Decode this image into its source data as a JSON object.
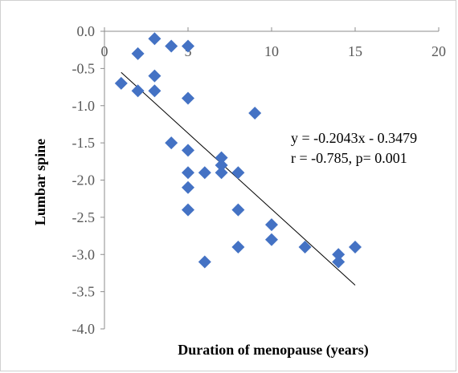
{
  "chart_data": {
    "type": "scatter",
    "title": "",
    "xlabel": "Duration of menopause (years)",
    "ylabel": "Lumbar spine",
    "xlim": [
      0,
      20
    ],
    "ylim": [
      -4.0,
      0.0
    ],
    "x_ticks": [
      "0",
      "5",
      "10",
      "15",
      "20"
    ],
    "y_ticks": [
      "0.0",
      "-0.5",
      "-1.0",
      "-1.5",
      "-2.0",
      "-2.5",
      "-3.0",
      "-3.5",
      "-4.0"
    ],
    "x_tick_values": [
      0,
      5,
      10,
      15,
      20
    ],
    "y_tick_values": [
      0.0,
      -0.5,
      -1.0,
      -1.5,
      -2.0,
      -2.5,
      -3.0,
      -3.5,
      -4.0
    ],
    "grid": false,
    "marker_color": "#4472C4",
    "points": [
      {
        "x": 1,
        "y": -0.7
      },
      {
        "x": 2,
        "y": -0.3
      },
      {
        "x": 2,
        "y": -0.8
      },
      {
        "x": 3,
        "y": -0.1
      },
      {
        "x": 3,
        "y": -0.6
      },
      {
        "x": 3,
        "y": -0.8
      },
      {
        "x": 4,
        "y": -0.2
      },
      {
        "x": 4,
        "y": -1.5
      },
      {
        "x": 5,
        "y": -0.2
      },
      {
        "x": 5,
        "y": -0.9
      },
      {
        "x": 5,
        "y": -1.6
      },
      {
        "x": 5,
        "y": -1.9
      },
      {
        "x": 5,
        "y": -2.1
      },
      {
        "x": 5,
        "y": -2.4
      },
      {
        "x": 6,
        "y": -1.9
      },
      {
        "x": 6,
        "y": -3.1
      },
      {
        "x": 7,
        "y": -1.7
      },
      {
        "x": 7,
        "y": -1.8
      },
      {
        "x": 7,
        "y": -1.9
      },
      {
        "x": 8,
        "y": -1.9
      },
      {
        "x": 8,
        "y": -2.4
      },
      {
        "x": 8,
        "y": -2.9
      },
      {
        "x": 9,
        "y": -1.1
      },
      {
        "x": 10,
        "y": -2.6
      },
      {
        "x": 10,
        "y": -2.8
      },
      {
        "x": 12,
        "y": -2.9
      },
      {
        "x": 14,
        "y": -3.0
      },
      {
        "x": 14,
        "y": -3.1
      },
      {
        "x": 15,
        "y": -2.9
      }
    ],
    "trendline": {
      "slope": -0.2043,
      "intercept": -0.3479,
      "x_range": [
        1,
        15
      ]
    },
    "annotations": [
      "y = -0.2043x - 0.3479",
      "r = -0.785, p= 0.001"
    ]
  }
}
